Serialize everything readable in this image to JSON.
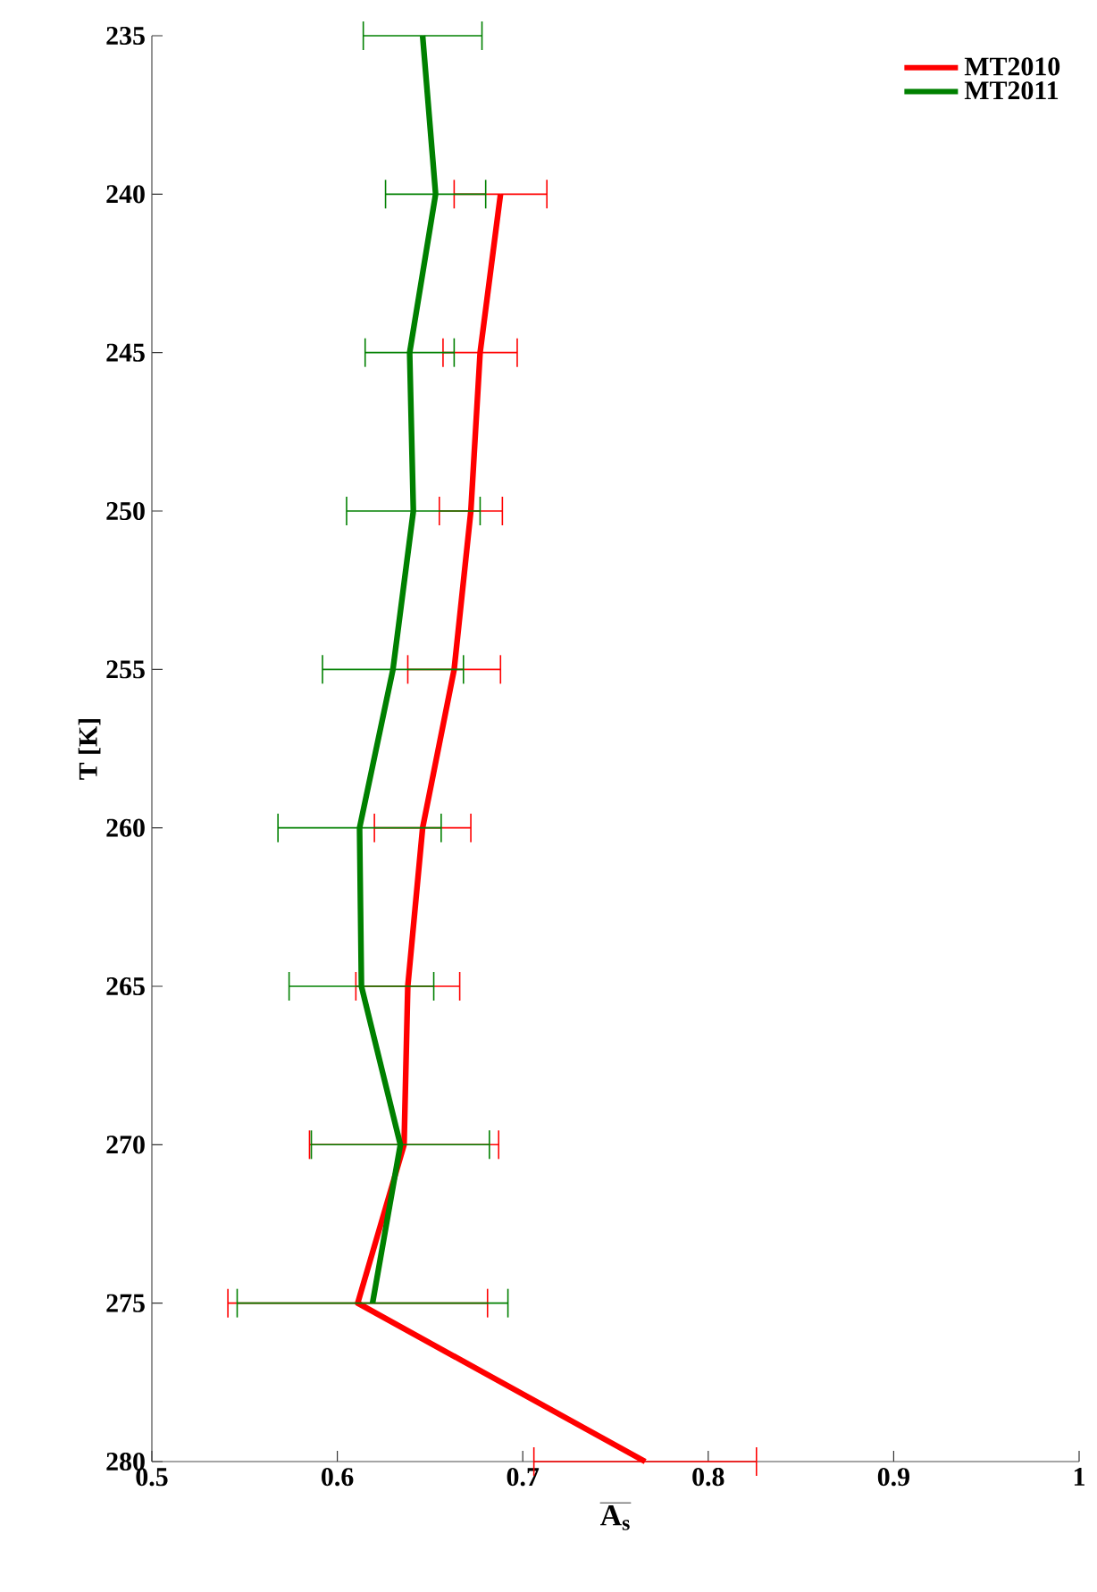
{
  "chart_data": {
    "type": "line",
    "xlabel": "\\overline{\\mathbf{A}_{\\mathbf{s}}}",
    "ylabel": "T [K]",
    "xlim": [
      0.5,
      1
    ],
    "xticks": [
      0.5,
      0.6,
      0.7,
      0.8,
      0.9,
      1
    ],
    "ylim": [
      280,
      235
    ],
    "yticks": [
      235,
      240,
      245,
      250,
      255,
      260,
      265,
      270,
      275,
      280
    ],
    "legend": "top right",
    "line_style": "solid",
    "series": [
      {
        "name": "MT2010",
        "color": "#ff0000",
        "x": [
          0.688,
          0.677,
          0.672,
          0.663,
          0.646,
          0.638,
          0.636,
          0.611,
          0.766
        ],
        "values": [
          240,
          245,
          250,
          255,
          260,
          265,
          270,
          275,
          280
        ],
        "xerrors": [
          0.025,
          0.02,
          0.017,
          0.025,
          0.026,
          0.028,
          0.051,
          0.07,
          0.06
        ]
      },
      {
        "name": "MT2011",
        "color": "#008000",
        "x": [
          0.646,
          0.653,
          0.639,
          0.641,
          0.63,
          0.612,
          0.613,
          0.634,
          0.619
        ],
        "values": [
          235,
          240,
          245,
          250,
          255,
          260,
          265,
          270,
          275
        ],
        "xerrors": [
          0.032,
          0.027,
          0.024,
          0.036,
          0.038,
          0.044,
          0.039,
          0.048,
          0.073
        ]
      }
    ]
  }
}
